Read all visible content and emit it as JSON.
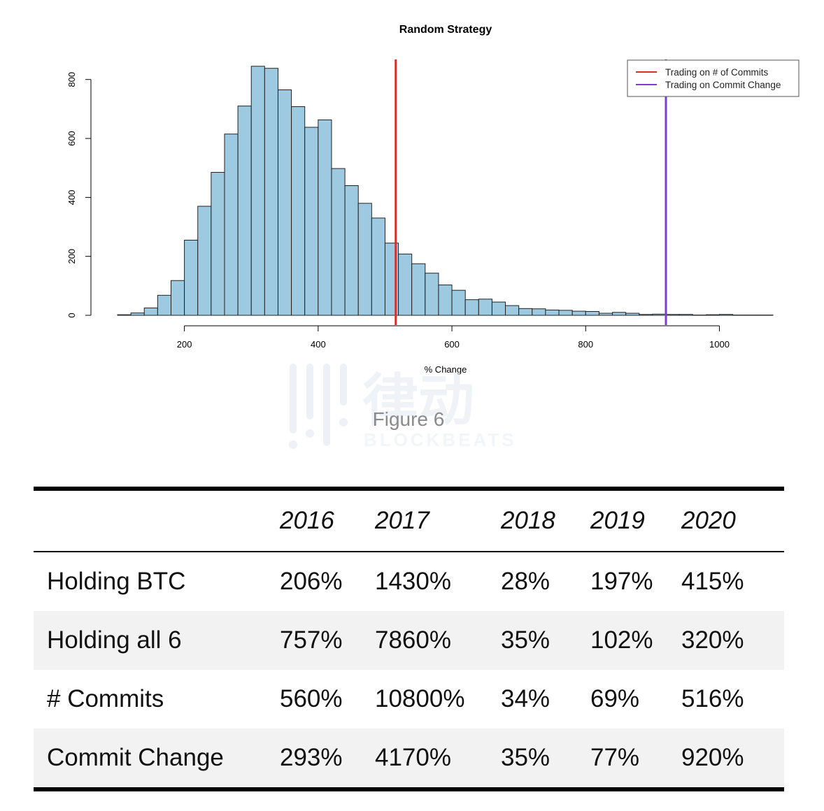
{
  "chart_data": {
    "type": "bar",
    "title": "Random Strategy",
    "xlabel": "% Change",
    "ylabel": "",
    "xlim": [
      100,
      1080
    ],
    "ylim": [
      0,
      880
    ],
    "bin_width": 20,
    "x_ticks": [
      200,
      400,
      600,
      800,
      1000
    ],
    "y_ticks": [
      0,
      200,
      400,
      600,
      800
    ],
    "bins": [
      {
        "start": 100,
        "count": 2
      },
      {
        "start": 120,
        "count": 8
      },
      {
        "start": 140,
        "count": 25
      },
      {
        "start": 160,
        "count": 68
      },
      {
        "start": 180,
        "count": 118
      },
      {
        "start": 200,
        "count": 255
      },
      {
        "start": 220,
        "count": 370
      },
      {
        "start": 240,
        "count": 485
      },
      {
        "start": 260,
        "count": 615
      },
      {
        "start": 280,
        "count": 710
      },
      {
        "start": 300,
        "count": 845
      },
      {
        "start": 320,
        "count": 838
      },
      {
        "start": 340,
        "count": 765
      },
      {
        "start": 360,
        "count": 708
      },
      {
        "start": 380,
        "count": 638
      },
      {
        "start": 400,
        "count": 663
      },
      {
        "start": 420,
        "count": 498
      },
      {
        "start": 440,
        "count": 440
      },
      {
        "start": 460,
        "count": 380
      },
      {
        "start": 480,
        "count": 330
      },
      {
        "start": 500,
        "count": 245
      },
      {
        "start": 520,
        "count": 208
      },
      {
        "start": 540,
        "count": 175
      },
      {
        "start": 560,
        "count": 143
      },
      {
        "start": 580,
        "count": 103
      },
      {
        "start": 600,
        "count": 85
      },
      {
        "start": 620,
        "count": 53
      },
      {
        "start": 640,
        "count": 55
      },
      {
        "start": 660,
        "count": 45
      },
      {
        "start": 680,
        "count": 33
      },
      {
        "start": 700,
        "count": 23
      },
      {
        "start": 720,
        "count": 22
      },
      {
        "start": 740,
        "count": 18
      },
      {
        "start": 760,
        "count": 17
      },
      {
        "start": 780,
        "count": 14
      },
      {
        "start": 800,
        "count": 13
      },
      {
        "start": 820,
        "count": 7
      },
      {
        "start": 840,
        "count": 10
      },
      {
        "start": 860,
        "count": 7
      },
      {
        "start": 880,
        "count": 3
      },
      {
        "start": 900,
        "count": 4
      },
      {
        "start": 920,
        "count": 3
      },
      {
        "start": 940,
        "count": 3
      },
      {
        "start": 960,
        "count": 1
      },
      {
        "start": 980,
        "count": 2
      },
      {
        "start": 1000,
        "count": 3
      },
      {
        "start": 1020,
        "count": 1
      },
      {
        "start": 1040,
        "count": 1
      },
      {
        "start": 1060,
        "count": 1
      }
    ],
    "bar_color": "#9ecae1",
    "vlines": [
      {
        "name": "Trading on # of Commits",
        "x": 516,
        "color": "#d73027"
      },
      {
        "name": "Trading on Commit Change",
        "x": 920,
        "color": "#7b3fd0"
      }
    ],
    "legend_position": "top-right",
    "grid": false
  },
  "watermark": {
    "glyphs": "律动",
    "brand": "BLOCKBEATS"
  },
  "caption": "Figure 6",
  "table": {
    "years": [
      "2016",
      "2017",
      "2018",
      "2019",
      "2020"
    ],
    "rows": [
      {
        "label": "Holding BTC",
        "values": [
          "206%",
          "1430%",
          "28%",
          "197%",
          "415%"
        ]
      },
      {
        "label": "Holding all 6",
        "values": [
          "757%",
          "7860%",
          "35%",
          "102%",
          "320%"
        ]
      },
      {
        "label": "# Commits",
        "values": [
          "560%",
          "10800%",
          "34%",
          "69%",
          "516%"
        ]
      },
      {
        "label": "Commit Change",
        "values": [
          "293%",
          "4170%",
          "35%",
          "77%",
          "920%"
        ]
      }
    ]
  }
}
